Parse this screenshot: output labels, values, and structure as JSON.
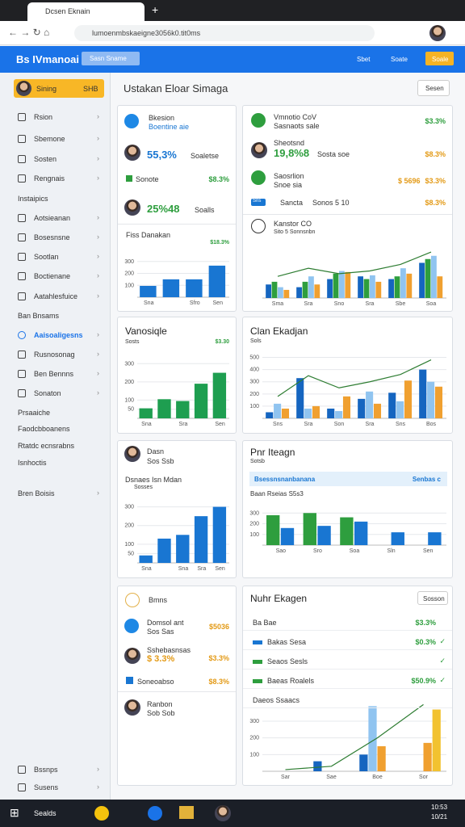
{
  "browser": {
    "tab": "Dcsen Eknain",
    "url": "lumoenmbskaeigne3056k0.tit0ms"
  },
  "app": {
    "logo": "Bs IVmanoai",
    "search": "Sasn Sname",
    "actions": [
      "Sbet",
      "Soate",
      "Soale"
    ]
  },
  "sidebar": {
    "user": "Sining",
    "badge": "SHB",
    "items": [
      "Rsion",
      "Sbemone",
      "Sosten",
      "Rengnais",
      "Instaipics",
      "Aotsieanan",
      "Bosesnsne",
      "Sootlan",
      "Boctienane",
      "Aatahlesfuice",
      "Ban Bnsams",
      "Aaisoaligesns",
      "Rusnosonag",
      "Ben Bennns",
      "Sonaton",
      "Prsaaiche",
      "Faodcbboanens",
      "Rtatdc ecnsrabns",
      "Isnhoctis",
      "Bren Boisis",
      "Bssnps",
      "Susens"
    ]
  },
  "page": {
    "title": "Ustakan Eloar Simaga",
    "button": "Sesen"
  },
  "card1": {
    "title": "Bkesion",
    "sub": "Boentine aie",
    "v1": "55,3%",
    "n1": "Soaletse",
    "row": "Sonote",
    "rowv": "$8.3%",
    "v2": "25%48",
    "n2": "Soalls",
    "chart": {
      "type": "bar",
      "title": "Fiss Danakan",
      "label": "$18.3%",
      "ylim": [
        0,
        400
      ],
      "yticks": [
        100,
        200,
        300
      ],
      "categories": [
        "Sna",
        null,
        "Sfro",
        "Sen"
      ],
      "series": [
        {
          "type": "bar",
          "color": "#1976d2",
          "values": [
            95,
            150,
            150,
            265
          ]
        }
      ]
    }
  },
  "card2": {
    "rows": [
      {
        "name": "Vmnotio CoV",
        "sub": "Sasnaots sale",
        "value": "$3.3%"
      },
      {
        "name": "Sheotsnd",
        "big": "19,8%8",
        "sub": "Sosta soe",
        "value": "$8.3%"
      },
      {
        "name": "Saosrlion",
        "sub": "Snoe sia",
        "extra": "$ 5696",
        "value": "$3.3%"
      },
      {
        "tag": "Sns",
        "name": "Sancta",
        "sub": "Sonos 5 10",
        "value": "$8.3%"
      }
    ],
    "chart": {
      "type": "bar",
      "title": "Kanstor CO",
      "sub": "Sito 5 Sonnsnbn",
      "ylim": [
        0,
        100
      ],
      "categories": [
        "Sma",
        "Sra",
        "Sno",
        "Sra",
        "Sbe",
        "Soa"
      ],
      "series": [
        {
          "type": "bar",
          "color": "#1565c0",
          "values": [
            25,
            20,
            35,
            40,
            35,
            65
          ]
        },
        {
          "type": "bar",
          "color": "#2e9e3e",
          "values": [
            30,
            30,
            45,
            35,
            40,
            72
          ]
        },
        {
          "type": "bar",
          "color": "#90c4f0",
          "values": [
            20,
            40,
            50,
            42,
            55,
            78
          ]
        },
        {
          "type": "bar",
          "color": "#f0a030",
          "values": [
            15,
            25,
            48,
            30,
            45,
            40
          ]
        },
        {
          "type": "line",
          "color": "#2e7d32",
          "values": [
            40,
            55,
            45,
            50,
            62,
            85
          ]
        }
      ]
    }
  },
  "card3": {
    "chart": {
      "type": "bar",
      "title": "Vanosiqle",
      "sub": "Sosts",
      "label": "$3.30",
      "ylim": [
        0,
        350
      ],
      "yticks": [
        50,
        100,
        200,
        300
      ],
      "categories": [
        "Sna",
        null,
        "Sra",
        null,
        "Sen"
      ],
      "series": [
        {
          "type": "bar",
          "color": "#1e9e50",
          "values": [
            55,
            105,
            95,
            190,
            250
          ]
        }
      ]
    }
  },
  "card4": {
    "chart": {
      "type": "bar",
      "title": "Clan Ekadjan",
      "sub": "Sols",
      "ylim": [
        0,
        550
      ],
      "yticks": [
        100,
        200,
        300,
        400,
        500
      ],
      "categories": [
        "Sns",
        "Sra",
        "Son",
        "Sra",
        "Sns",
        "Bos"
      ],
      "series": [
        {
          "type": "bar",
          "color": "#1565c0",
          "values": [
            50,
            330,
            80,
            160,
            210,
            400
          ]
        },
        {
          "type": "bar",
          "color": "#90c4f0",
          "values": [
            120,
            80,
            60,
            220,
            140,
            300
          ]
        },
        {
          "type": "bar",
          "color": "#f0a030",
          "values": [
            80,
            100,
            180,
            120,
            310,
            260
          ]
        },
        {
          "type": "line",
          "color": "#2e7d32",
          "values": [
            180,
            350,
            250,
            300,
            360,
            480
          ]
        }
      ]
    }
  },
  "card5": {
    "name": "Dasn",
    "sub": "Sos Ssb",
    "chart": {
      "type": "bar",
      "title": "Dsnaes Isn Mdan",
      "sub": "Sosses",
      "ylim": [
        0,
        350
      ],
      "yticks": [
        50,
        100,
        200,
        300
      ],
      "categories": [
        "Sna",
        null,
        "Sna",
        "Sra",
        "Sen"
      ],
      "series": [
        {
          "type": "bar",
          "color": "#1976d2",
          "values": [
            40,
            130,
            150,
            250,
            300
          ]
        }
      ]
    }
  },
  "card6": {
    "title": "Pnr Iteagn",
    "sub": "Sotsb",
    "banner": "Bsessnsnanbanana",
    "bannerv": "Senbas c",
    "chart": {
      "type": "bar",
      "title": "Baan Rseias S5s3",
      "ylim": [
        0,
        400
      ],
      "yticks": [
        100,
        200,
        300
      ],
      "categories": [
        "Sao",
        "Sro",
        "Soa",
        "Sln",
        "Sen"
      ],
      "series": [
        {
          "type": "bar",
          "color": "#2e9e3e",
          "values": [
            280,
            300,
            260,
            null,
            null
          ]
        },
        {
          "type": "bar",
          "color": "#1976d2",
          "values": [
            160,
            180,
            220,
            120,
            120
          ]
        }
      ]
    }
  },
  "card7": {
    "title": "Bmns",
    "rows": [
      {
        "name": "Domsol ant",
        "sub": "Sos Sas",
        "value": "$5036"
      },
      {
        "name": "Sshebasnsas",
        "big": "$ 3.3%",
        "value": "$3.3%"
      },
      {
        "name": "Soneoabso",
        "value": "$8.3%"
      },
      {
        "name": "Ranbon",
        "sub": "Sob Sob"
      }
    ]
  },
  "card8": {
    "title": "Nuhr Ekagen",
    "button": "Sosson",
    "rows": [
      {
        "name": "Ba Bae",
        "value": "$3.3%"
      },
      {
        "name": "Bakas Sesa",
        "value": "$0.3%"
      },
      {
        "name": "Seaos Sesls"
      },
      {
        "name": "Baeas Roalels",
        "value": "$50.9%"
      },
      {
        "name": "Daeos Ssaacs"
      }
    ],
    "chart": {
      "type": "bar",
      "ylim": [
        0,
        450
      ],
      "yticks": [
        100,
        200,
        300
      ],
      "categories": [
        "Sar",
        "Sae",
        "Boe",
        "Sor"
      ],
      "series": [
        {
          "type": "bar",
          "color": "#1565c0",
          "values": [
            null,
            60,
            100,
            null
          ]
        },
        {
          "type": "bar",
          "color": "#90c4f0",
          "values": [
            null,
            null,
            390,
            null
          ]
        },
        {
          "type": "bar",
          "color": "#f0a030",
          "values": [
            null,
            null,
            150,
            170
          ]
        },
        {
          "type": "bar",
          "color": "#f2c230",
          "values": [
            null,
            null,
            null,
            370
          ]
        },
        {
          "type": "line",
          "color": "#2e7d32",
          "values": [
            10,
            30,
            200,
            400
          ]
        }
      ]
    }
  },
  "taskbar": {
    "search": "Sealds",
    "time": "10:53",
    "date": "10/21"
  }
}
